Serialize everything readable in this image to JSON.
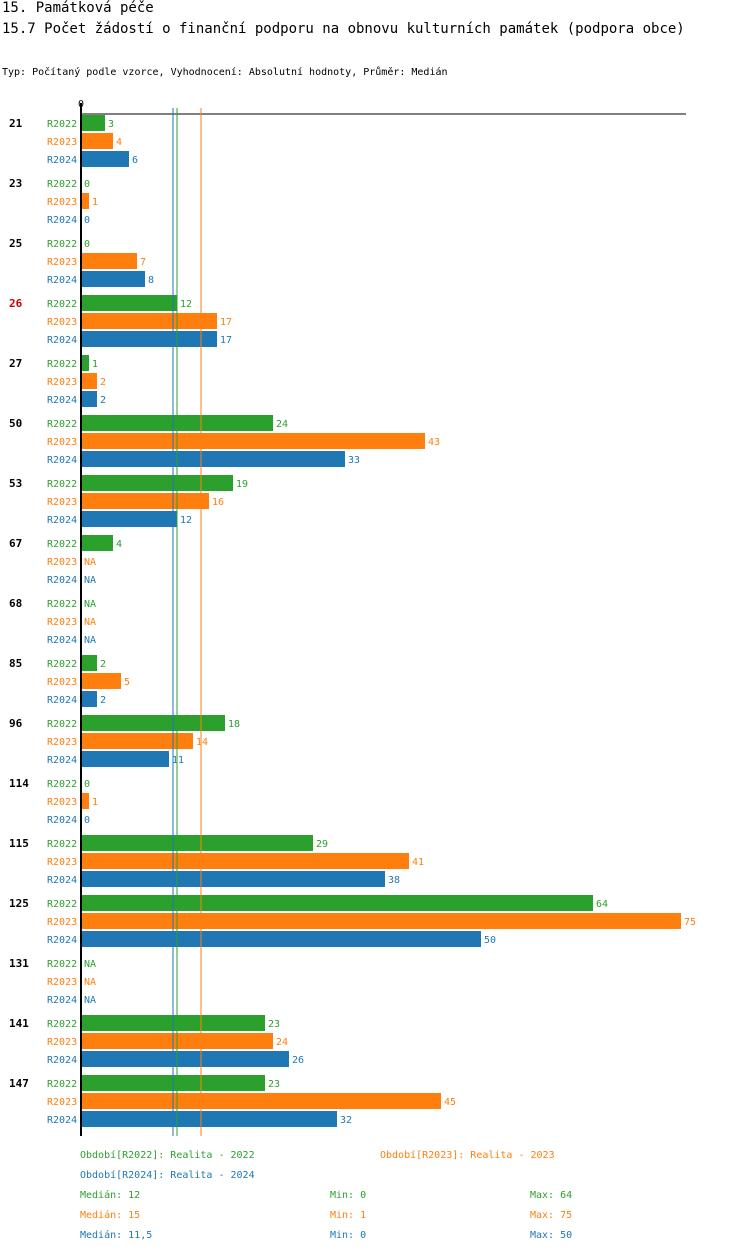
{
  "header": {
    "title": "15. Památková péče",
    "subtitle": "15.7 Počet žádostí o finanční podporu na obnovu kulturních památek (podpora obce)",
    "type_line": "Typ: Počítaný podle vzorce, Vyhodnocení: Absolutní hodnoty, Průměr: Medián"
  },
  "colors": {
    "R2022": "#2ca02c",
    "R2023": "#ff7f0e",
    "R2024": "#1f77b4",
    "highlight": "#cc0000"
  },
  "chart_data": {
    "type": "bar",
    "orientation": "horizontal",
    "axis_zero_label": "0",
    "xlim": [
      0,
      75
    ],
    "highlight_category": "26",
    "categories": [
      "21",
      "23",
      "25",
      "26",
      "27",
      "50",
      "53",
      "67",
      "68",
      "85",
      "96",
      "114",
      "115",
      "125",
      "131",
      "141",
      "147"
    ],
    "series": [
      {
        "name": "R2022",
        "values": [
          3,
          0,
          0,
          12,
          1,
          24,
          19,
          4,
          null,
          2,
          18,
          0,
          29,
          64,
          null,
          23,
          23
        ]
      },
      {
        "name": "R2023",
        "values": [
          4,
          1,
          7,
          17,
          2,
          43,
          16,
          null,
          null,
          5,
          14,
          1,
          41,
          75,
          null,
          24,
          45
        ]
      },
      {
        "name": "R2024",
        "values": [
          6,
          0,
          8,
          17,
          2,
          33,
          12,
          null,
          null,
          2,
          11,
          0,
          38,
          50,
          null,
          26,
          32
        ]
      }
    ],
    "na_label": "NA",
    "medians": {
      "R2022": 12,
      "R2023": 15,
      "R2024": 11.5
    }
  },
  "legend": {
    "period_2022": "Období[R2022]: Realita - 2022",
    "period_2023": "Období[R2023]: Realita - 2023",
    "period_2024": "Období[R2024]: Realita - 2024",
    "stats_2022": {
      "median": "Medián: 12",
      "min": "Min: 0",
      "max": "Max: 64"
    },
    "stats_2023": {
      "median": "Medián: 15",
      "min": "Min: 1",
      "max": "Max: 75"
    },
    "stats_2024": {
      "median": "Medián: 11,5",
      "min": "Min: 0",
      "max": "Max: 50"
    }
  }
}
